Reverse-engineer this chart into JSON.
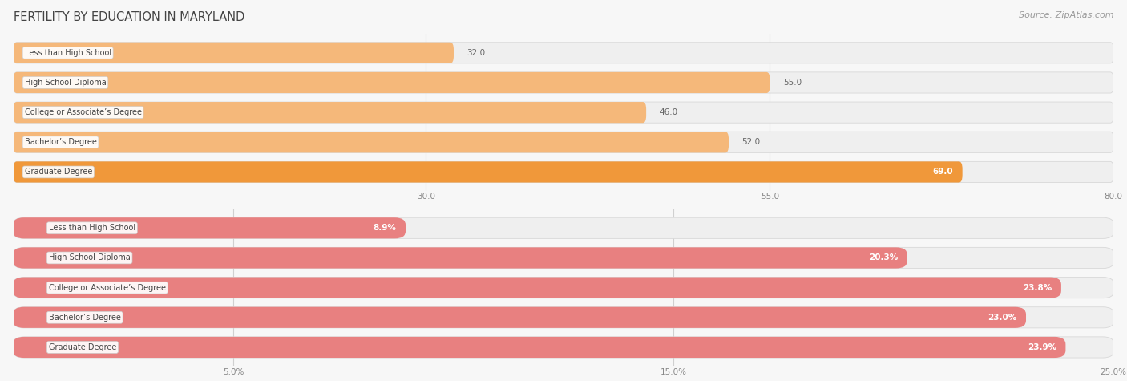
{
  "title": "FERTILITY BY EDUCATION IN MARYLAND",
  "source": "Source: ZipAtlas.com",
  "chart1": {
    "categories": [
      "Less than High School",
      "High School Diploma",
      "College or Associate’s Degree",
      "Bachelor’s Degree",
      "Graduate Degree"
    ],
    "values": [
      32.0,
      55.0,
      46.0,
      52.0,
      69.0
    ],
    "xlim": [
      0,
      80.0
    ],
    "xticks": [
      30.0,
      55.0,
      80.0
    ],
    "bar_color": "#f5b87a",
    "bar_color_highlight": "#f0983a",
    "bar_bg_color": "#efefef",
    "bar_bg_edge": "#d8d8d8",
    "highlight_index": 4
  },
  "chart2": {
    "categories": [
      "Less than High School",
      "High School Diploma",
      "College or Associate’s Degree",
      "Bachelor’s Degree",
      "Graduate Degree"
    ],
    "values": [
      8.9,
      20.3,
      23.8,
      23.0,
      23.9
    ],
    "xlim": [
      0,
      25.0
    ],
    "xticks": [
      5.0,
      15.0,
      25.0
    ],
    "bar_color": "#e88080",
    "bar_color_highlight": "#e88080",
    "bar_bg_color": "#efefef",
    "bar_bg_edge": "#d8d8d8",
    "highlight_index": -1
  },
  "panel_bg": "#f7f7f7",
  "grid_color": "#d0d0d0",
  "cat_font_size": 7.0,
  "val_font_size": 7.5,
  "tick_font_size": 7.5,
  "title_font_size": 10.5,
  "source_font_size": 8.0,
  "title_color": "#444444",
  "tick_color": "#888888",
  "val_color_outside": "#666666",
  "val_color_inside": "#ffffff",
  "cat_text_color": "#444444",
  "cat_box_color": "#ffffff",
  "cat_box_edge": "#cccccc"
}
